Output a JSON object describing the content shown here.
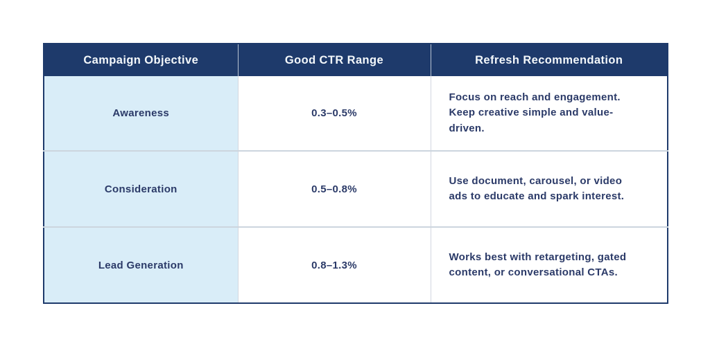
{
  "chart_data": {
    "type": "table",
    "columns": [
      "Campaign Objective",
      "Good CTR Range",
      "Refresh Recommendation"
    ],
    "rows": [
      [
        "Awareness",
        "0.3–0.5%",
        "Focus on reach and engagement. Keep creative simple and value-driven."
      ],
      [
        "Consideration",
        "0.5–0.8%",
        "Use document, carousel, or video ads to educate and spark interest."
      ],
      [
        "Lead Generation",
        "0.8–1.3%",
        "Works best with retargeting, gated content, or conversational CTAs."
      ]
    ],
    "layout_hints": {
      "header_fill": "navy",
      "first_column_fill": "light-blue",
      "grid": "on"
    }
  },
  "colors": {
    "header_bg": "#1e3a6b",
    "header_text": "#f4f8fb",
    "body_text": "#2b3a68",
    "first_col_bg": "#d9edf8",
    "cell_bg": "#ffffff",
    "grid_line": "#ccd5de",
    "outer_border": "#1e3a6b",
    "page_bg": "#ffffff"
  }
}
